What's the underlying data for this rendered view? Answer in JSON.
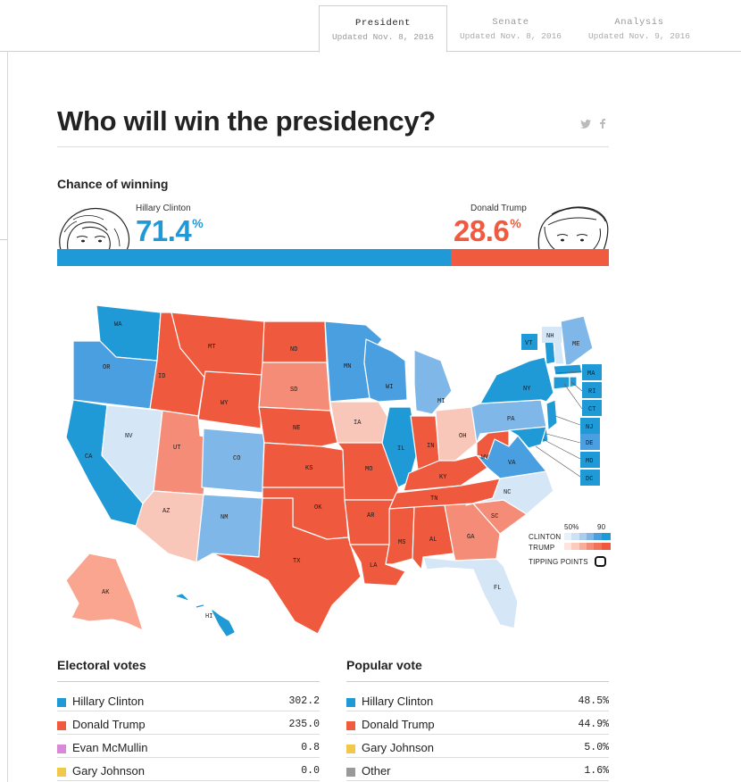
{
  "tabs": [
    {
      "label": "President",
      "updated": "Updated Nov. 8, 2016",
      "active": true
    },
    {
      "label": "Senate",
      "updated": "Updated Nov. 8, 2016",
      "active": false
    },
    {
      "label": "Analysis",
      "updated": "Updated Nov. 9, 2016",
      "active": false
    }
  ],
  "headline": "Who will win the presidency?",
  "share": {
    "twitter_icon": "twitter-icon",
    "facebook_icon": "facebook-icon"
  },
  "chance": {
    "label": "Chance of winning",
    "clinton": {
      "name": "Hillary Clinton",
      "value": "71.4",
      "unit": "%",
      "color": "#1f9ad6"
    },
    "trump": {
      "name": "Donald Trump",
      "value": "28.6",
      "unit": "%",
      "color": "#f05a3e"
    },
    "clinton_fraction": 0.714
  },
  "map": {
    "labels": [
      "WA",
      "OR",
      "CA",
      "NV",
      "ID",
      "MT",
      "WY",
      "UT",
      "AZ",
      "CO",
      "NM",
      "ND",
      "SD",
      "NE",
      "KS",
      "OK",
      "TX",
      "MN",
      "IA",
      "MO",
      "AR",
      "LA",
      "WI",
      "IL",
      "MI",
      "IN",
      "OH",
      "KY",
      "TN",
      "MS",
      "AL",
      "GA",
      "FL",
      "SC",
      "NC",
      "VA",
      "WV",
      "PA",
      "NY",
      "VT",
      "NH",
      "ME",
      "MA",
      "RI",
      "CT",
      "NJ",
      "DE",
      "MD",
      "DC",
      "AK",
      "HI"
    ],
    "legend": {
      "clinton_label": "CLINTON",
      "trump_label": "TRUMP",
      "low": "50%",
      "high": "90",
      "tipping": "TIPPING POINTS"
    },
    "colors": {
      "clinton_dark": "#1f9ad6",
      "clinton_mid": "#7fb8e8",
      "clinton_light": "#d5e6f6",
      "trump_dark": "#ef5a3e",
      "trump_mid": "#f58c77",
      "trump_light": "#f9c7b9"
    }
  },
  "electoral": {
    "title": "Electoral votes",
    "rows": [
      {
        "name": "Hillary Clinton",
        "value": "302.2",
        "color": "#1f9ad6"
      },
      {
        "name": "Donald Trump",
        "value": "235.0",
        "color": "#f05a3e"
      },
      {
        "name": "Evan McMullin",
        "value": "0.8",
        "color": "#d88ad8"
      },
      {
        "name": "Gary Johnson",
        "value": "0.0",
        "color": "#f2c84b"
      }
    ]
  },
  "popular": {
    "title": "Popular vote",
    "rows": [
      {
        "name": "Hillary Clinton",
        "value": "48.5%",
        "color": "#1f9ad6"
      },
      {
        "name": "Donald Trump",
        "value": "44.9%",
        "color": "#f05a3e"
      },
      {
        "name": "Gary Johnson",
        "value": "5.0%",
        "color": "#f2c84b"
      },
      {
        "name": "Other",
        "value": "1.6%",
        "color": "#999999"
      }
    ]
  }
}
